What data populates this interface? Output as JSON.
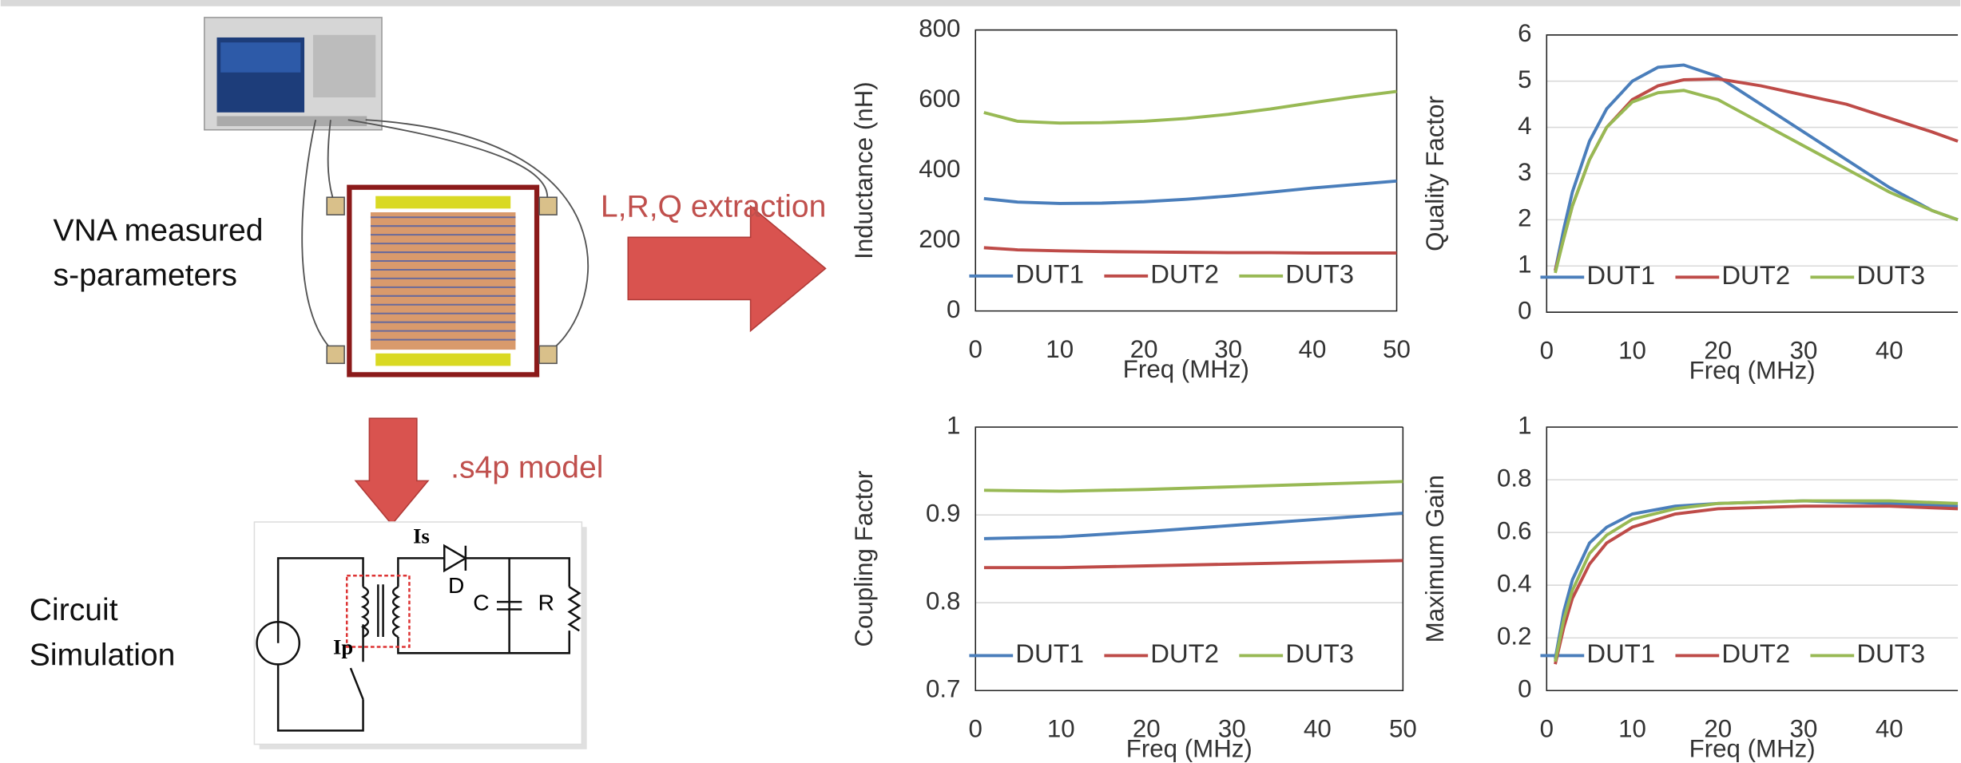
{
  "chart_data": [
    {
      "type": "line",
      "x_label": "Freq (MHz)",
      "y_label": "Inductance (nH)",
      "x": [
        1,
        5,
        10,
        15,
        20,
        25,
        30,
        35,
        40,
        45,
        50
      ],
      "series": [
        {
          "name": "DUT1",
          "color": "#4a7ebb",
          "values": [
            320,
            310,
            306,
            307,
            311,
            318,
            327,
            338,
            350,
            360,
            370
          ]
        },
        {
          "name": "DUT2",
          "color": "#be4b48",
          "values": [
            180,
            174,
            171,
            169,
            168,
            167,
            166,
            166,
            165,
            165,
            165
          ]
        },
        {
          "name": "DUT3",
          "color": "#98b954",
          "values": [
            565,
            540,
            535,
            536,
            540,
            548,
            560,
            575,
            593,
            610,
            625
          ]
        }
      ],
      "xlim": [
        0,
        50
      ],
      "ylim": [
        0,
        800
      ],
      "xticks": [
        0,
        10,
        20,
        30,
        40,
        50
      ],
      "yticks": [
        0,
        200,
        400,
        600,
        800
      ],
      "grid": false,
      "legend": "bottom"
    },
    {
      "type": "line",
      "x_label": "Freq (MHz)",
      "y_label": "Quality Factor",
      "x": [
        1,
        2,
        3,
        5,
        7,
        10,
        13,
        16,
        20,
        25,
        30,
        35,
        40,
        45,
        48
      ],
      "series": [
        {
          "name": "DUT1",
          "color": "#4a7ebb",
          "values": [
            0.9,
            1.8,
            2.6,
            3.7,
            4.4,
            5.0,
            5.3,
            5.35,
            5.1,
            4.5,
            3.9,
            3.3,
            2.7,
            2.2,
            2.0
          ]
        },
        {
          "name": "DUT2",
          "color": "#be4b48",
          "values": [
            0.9,
            1.6,
            2.3,
            3.3,
            4.0,
            4.6,
            4.9,
            5.03,
            5.05,
            4.9,
            4.7,
            4.5,
            4.2,
            3.9,
            3.7
          ]
        },
        {
          "name": "DUT3",
          "color": "#98b954",
          "values": [
            0.85,
            1.6,
            2.3,
            3.3,
            4.0,
            4.55,
            4.75,
            4.8,
            4.6,
            4.1,
            3.6,
            3.1,
            2.6,
            2.2,
            2.0
          ]
        }
      ],
      "xlim": [
        0,
        48
      ],
      "ylim": [
        0,
        6
      ],
      "xticks": [
        0,
        10,
        20,
        30,
        40
      ],
      "yticks": [
        0,
        1,
        2,
        3,
        4,
        5,
        6
      ],
      "grid": true,
      "legend": "bottom"
    },
    {
      "type": "line",
      "x_label": "Freq (MHz)",
      "y_label": "Coupling Factor",
      "x": [
        1,
        10,
        20,
        30,
        40,
        50
      ],
      "series": [
        {
          "name": "DUT1",
          "color": "#4a7ebb",
          "values": [
            0.873,
            0.875,
            0.881,
            0.888,
            0.895,
            0.902
          ]
        },
        {
          "name": "DUT2",
          "color": "#be4b48",
          "values": [
            0.84,
            0.84,
            0.842,
            0.844,
            0.846,
            0.848
          ]
        },
        {
          "name": "DUT3",
          "color": "#98b954",
          "values": [
            0.928,
            0.927,
            0.929,
            0.932,
            0.935,
            0.938
          ]
        }
      ],
      "xlim": [
        0,
        50
      ],
      "ylim": [
        0.7,
        1
      ],
      "xticks": [
        0,
        10,
        20,
        30,
        40,
        50
      ],
      "yticks": [
        0.7,
        0.8,
        0.9,
        1
      ],
      "grid": true,
      "legend": "bottom"
    },
    {
      "type": "line",
      "x_label": "Freq (MHz)",
      "y_label": "Maximum Gain",
      "x": [
        1,
        2,
        3,
        5,
        7,
        10,
        15,
        20,
        30,
        40,
        48
      ],
      "series": [
        {
          "name": "DUT1",
          "color": "#4a7ebb",
          "values": [
            0.12,
            0.3,
            0.42,
            0.56,
            0.62,
            0.67,
            0.7,
            0.71,
            0.72,
            0.71,
            0.7
          ]
        },
        {
          "name": "DUT2",
          "color": "#be4b48",
          "values": [
            0.1,
            0.24,
            0.35,
            0.48,
            0.56,
            0.62,
            0.67,
            0.69,
            0.7,
            0.7,
            0.69
          ]
        },
        {
          "name": "DUT3",
          "color": "#98b954",
          "values": [
            0.11,
            0.27,
            0.38,
            0.52,
            0.59,
            0.65,
            0.69,
            0.71,
            0.72,
            0.72,
            0.71
          ]
        }
      ],
      "xlim": [
        0,
        48
      ],
      "ylim": [
        0,
        1
      ],
      "xticks": [
        0,
        10,
        20,
        30,
        40
      ],
      "yticks": [
        0,
        0.2,
        0.4,
        0.6,
        0.8,
        1
      ],
      "grid": true,
      "legend": "bottom"
    }
  ],
  "diagram": {
    "vna_label": [
      "VNA measured",
      "s-parameters"
    ],
    "extraction_label": "L,R,Q extraction",
    "model_label": ".s4p model",
    "simulation_label": [
      "Circuit",
      "Simulation"
    ],
    "circuit": {
      "is": "Is",
      "ip": "Ip",
      "d": "D",
      "c": "C",
      "r": "R"
    }
  }
}
